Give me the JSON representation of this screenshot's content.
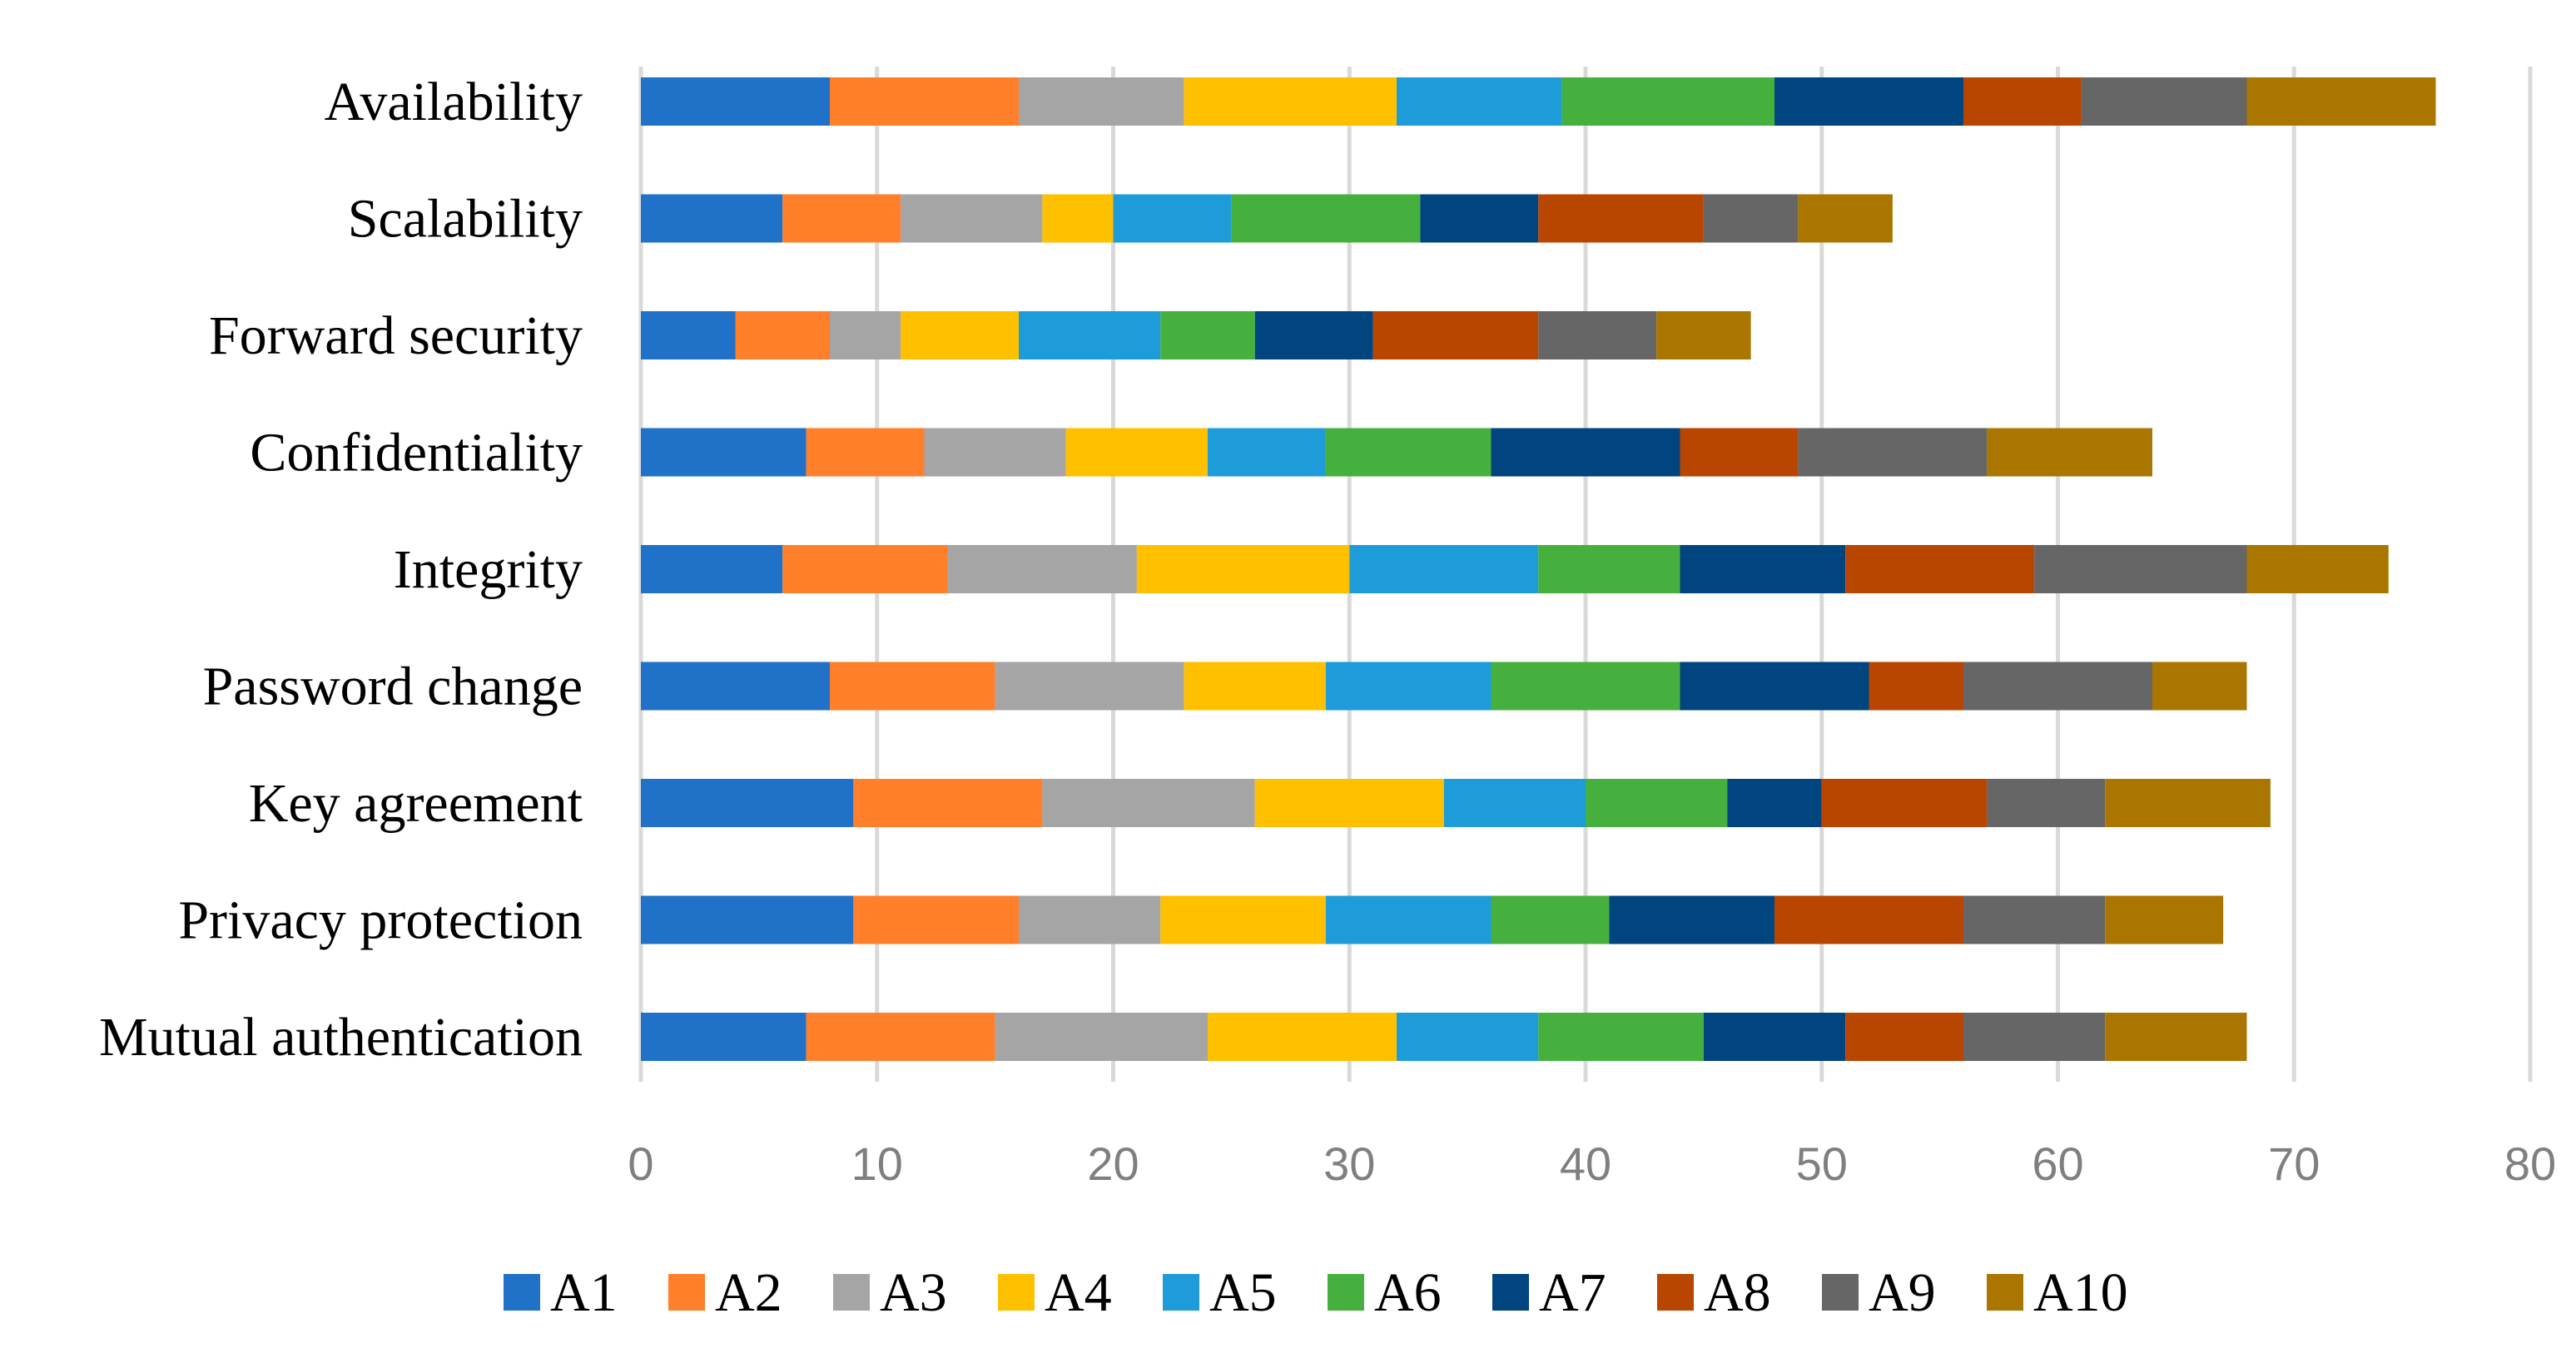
{
  "chart_data": {
    "type": "bar",
    "orientation": "horizontal",
    "stacked": true,
    "title": "",
    "xlabel": "",
    "ylabel": "",
    "xlim": [
      0,
      80
    ],
    "x_ticks": [
      0,
      10,
      20,
      30,
      40,
      50,
      60,
      70,
      80
    ],
    "grid": true,
    "legend_position": "bottom",
    "categories": [
      "Availability",
      "Scalability",
      "Forward security",
      "Confidentiality",
      "Integrity",
      "Password change",
      "Key agreement",
      "Privacy protection",
      "Mutual authentication"
    ],
    "series": [
      {
        "name": "A1",
        "color": "#1F72C7",
        "values": [
          8,
          6,
          4,
          7,
          6,
          8,
          9,
          9,
          7
        ]
      },
      {
        "name": "A2",
        "color": "#FF7F2A",
        "values": [
          8,
          5,
          4,
          5,
          7,
          7,
          8,
          7,
          8
        ]
      },
      {
        "name": "A3",
        "color": "#A5A5A5",
        "values": [
          7,
          6,
          3,
          6,
          8,
          8,
          9,
          6,
          9
        ]
      },
      {
        "name": "A4",
        "color": "#FFC000",
        "values": [
          9,
          3,
          5,
          6,
          9,
          6,
          8,
          7,
          8
        ]
      },
      {
        "name": "A5",
        "color": "#1E9CD9",
        "values": [
          7,
          5,
          6,
          5,
          8,
          7,
          6,
          7,
          6
        ]
      },
      {
        "name": "A6",
        "color": "#45B03E",
        "values": [
          9,
          8,
          4,
          7,
          6,
          8,
          6,
          5,
          7
        ]
      },
      {
        "name": "A7",
        "color": "#004480",
        "values": [
          8,
          5,
          5,
          8,
          7,
          8,
          4,
          7,
          6
        ]
      },
      {
        "name": "A8",
        "color": "#B84500",
        "values": [
          5,
          7,
          7,
          5,
          8,
          4,
          7,
          8,
          5
        ]
      },
      {
        "name": "A9",
        "color": "#666666",
        "values": [
          7,
          4,
          5,
          8,
          9,
          8,
          5,
          6,
          6
        ]
      },
      {
        "name": "A10",
        "color": "#AB7600",
        "values": [
          8,
          4,
          4,
          7,
          6,
          4,
          7,
          5,
          6
        ]
      }
    ]
  }
}
